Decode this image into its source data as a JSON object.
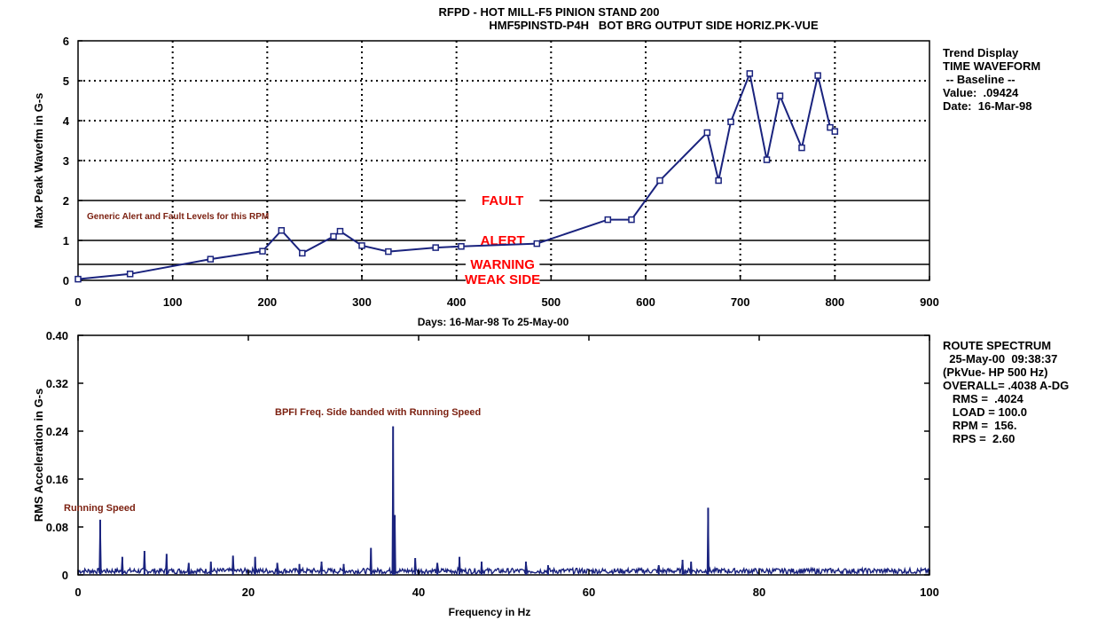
{
  "header": {
    "title_line1": "RFPD - HOT MILL-F5 PINION STAND 200",
    "title_line2": "HMF5PINSTD-P4H   BOT BRG OUTPUT SIDE HORIZ.PK-VUE"
  },
  "trend_panel": {
    "line1": "Trend Display",
    "line2": "TIME WAVEFORM",
    "line3": " -- Baseline --",
    "line4": "Value:  .09424",
    "line5": "Date:  16-Mar-98"
  },
  "spectrum_panel": {
    "line1": "ROUTE SPECTRUM",
    "line2": "  25-May-00  09:38:37",
    "line3": "(PkVue- HP 500 Hz)",
    "line4": "OVERALL= .4038 A-DG",
    "line5": "   RMS =  .4024",
    "line6": "   LOAD = 100.0",
    "line7": "   RPM =  156.",
    "line8": "   RPS =  2.60"
  },
  "colors": {
    "series": "#1a237e",
    "level_label": "#ff0000",
    "annotation": "#7b1f0f",
    "axis": "#000000"
  },
  "chart_data": [
    {
      "type": "line",
      "xlabel": "Days:  16-Mar-98  To  25-May-00",
      "ylabel": "Max Peak Wavefm in G-s",
      "xlim": [
        0,
        900
      ],
      "ylim": [
        0,
        6
      ],
      "x_ticks": [
        0,
        100,
        200,
        300,
        400,
        500,
        600,
        700,
        800,
        900
      ],
      "y_ticks": [
        0,
        1,
        2,
        3,
        4,
        5,
        6
      ],
      "grid": "dotted",
      "series": [
        {
          "x": [
            0,
            55,
            140,
            195,
            215,
            237,
            270,
            277,
            300,
            328,
            378,
            405,
            485,
            560,
            585,
            615,
            665,
            677,
            690,
            710,
            728,
            742,
            765,
            782,
            795,
            800
          ],
          "y": [
            0.03,
            0.16,
            0.53,
            0.73,
            1.25,
            0.68,
            1.1,
            1.23,
            0.87,
            0.72,
            0.82,
            0.85,
            0.92,
            1.52,
            1.52,
            2.5,
            3.7,
            2.5,
            3.97,
            5.18,
            3.02,
            4.62,
            3.32,
            5.13,
            3.83,
            3.73
          ]
        }
      ],
      "gap_between": [
        405,
        485
      ],
      "levels": [
        {
          "name": "FAULT",
          "value": 2.0
        },
        {
          "name": "ALERT",
          "value": 1.0
        },
        {
          "name": "WARNING",
          "value": 0.4
        }
      ],
      "extra_label": "WEAK SIDE",
      "annotations": [
        {
          "text": "Generic Alert and Fault Levels for this RPM"
        }
      ]
    },
    {
      "type": "line",
      "xlabel": "Frequency in Hz",
      "ylabel": "RMS Acceleration in G-s",
      "xlim": [
        0,
        100
      ],
      "ylim": [
        0,
        0.4
      ],
      "x_ticks": [
        0,
        20,
        40,
        60,
        80,
        100
      ],
      "y_ticks": [
        "0",
        "0.08",
        "0.16",
        "0.24",
        "0.32",
        "0.40"
      ],
      "grid": "none",
      "peaks": [
        {
          "x": 2.6,
          "y": 0.092
        },
        {
          "x": 5.2,
          "y": 0.03
        },
        {
          "x": 7.8,
          "y": 0.04
        },
        {
          "x": 10.4,
          "y": 0.035
        },
        {
          "x": 13.0,
          "y": 0.02
        },
        {
          "x": 15.6,
          "y": 0.022
        },
        {
          "x": 18.2,
          "y": 0.032
        },
        {
          "x": 20.8,
          "y": 0.03
        },
        {
          "x": 23.4,
          "y": 0.02
        },
        {
          "x": 26.0,
          "y": 0.018
        },
        {
          "x": 28.6,
          "y": 0.022
        },
        {
          "x": 31.2,
          "y": 0.018
        },
        {
          "x": 34.4,
          "y": 0.045
        },
        {
          "x": 37.0,
          "y": 0.248
        },
        {
          "x": 37.2,
          "y": 0.1
        },
        {
          "x": 39.6,
          "y": 0.028
        },
        {
          "x": 42.2,
          "y": 0.02
        },
        {
          "x": 44.8,
          "y": 0.03
        },
        {
          "x": 47.4,
          "y": 0.022
        },
        {
          "x": 52.6,
          "y": 0.022
        },
        {
          "x": 55.2,
          "y": 0.016
        },
        {
          "x": 68.2,
          "y": 0.016
        },
        {
          "x": 71.0,
          "y": 0.025
        },
        {
          "x": 72.0,
          "y": 0.022
        },
        {
          "x": 74.0,
          "y": 0.112
        }
      ],
      "annotations": [
        {
          "text": "Running Speed"
        },
        {
          "text": "BPFI Freq. Side banded with Running Speed"
        }
      ]
    }
  ]
}
